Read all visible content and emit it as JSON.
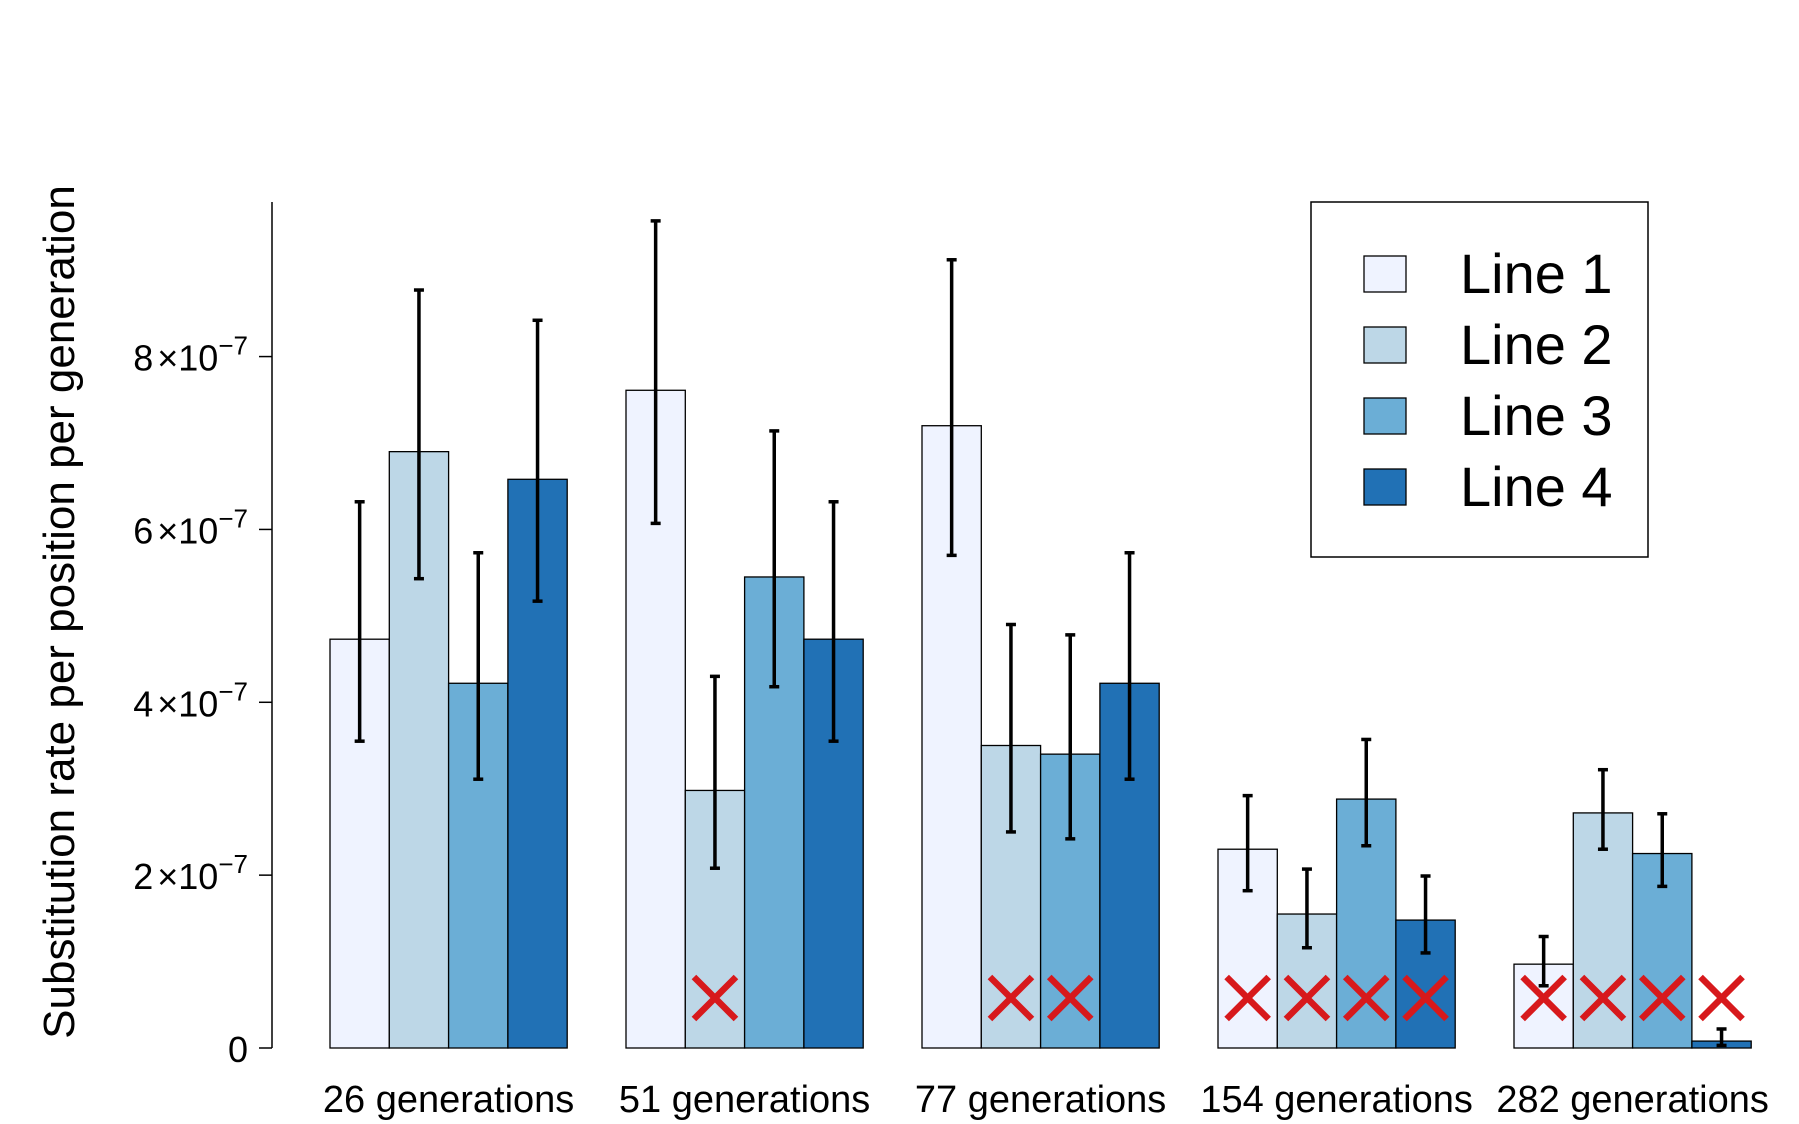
{
  "chart_data": {
    "type": "bar",
    "ylabel": "Substitution rate per position per generation",
    "xlabel": "",
    "ylim": [
      0,
      9.8e-07
    ],
    "yticks": [
      {
        "value": 0,
        "coef": "0",
        "sup": ""
      },
      {
        "value": 2e-07,
        "coef": "2",
        "sup": "−7"
      },
      {
        "value": 4e-07,
        "coef": "4",
        "sup": "−7"
      },
      {
        "value": 6e-07,
        "coef": "6",
        "sup": "−7"
      },
      {
        "value": 8e-07,
        "coef": "8",
        "sup": "−7"
      }
    ],
    "tick_times": "×10",
    "categories": [
      "26 generations",
      "51 generations",
      "77 generations",
      "154 generations",
      "282 generations"
    ],
    "series": [
      {
        "name": "Line 1",
        "color": "#eff3ff",
        "values": [
          4.73e-07,
          7.61e-07,
          7.2e-07,
          2.3e-07,
          9.7e-08
        ],
        "err_low": [
          3.55e-07,
          6.07e-07,
          5.7e-07,
          1.82e-07,
          7.2e-08
        ],
        "err_high": [
          6.32e-07,
          9.57e-07,
          9.12e-07,
          2.92e-07,
          1.29e-07
        ],
        "excluded": [
          false,
          false,
          false,
          true,
          true
        ]
      },
      {
        "name": "Line 2",
        "color": "#bdd7e7",
        "values": [
          6.9e-07,
          2.98e-07,
          3.5e-07,
          1.55e-07,
          2.72e-07
        ],
        "err_low": [
          5.43e-07,
          2.08e-07,
          2.5e-07,
          1.16e-07,
          2.3e-07
        ],
        "err_high": [
          8.77e-07,
          4.3e-07,
          4.9e-07,
          2.07e-07,
          3.22e-07
        ],
        "excluded": [
          false,
          true,
          true,
          true,
          true
        ]
      },
      {
        "name": "Line 3",
        "color": "#6baed6",
        "values": [
          4.22e-07,
          5.45e-07,
          3.4e-07,
          2.88e-07,
          2.25e-07
        ],
        "err_low": [
          3.11e-07,
          4.18e-07,
          2.42e-07,
          2.34e-07,
          1.87e-07
        ],
        "err_high": [
          5.73e-07,
          7.14e-07,
          4.78e-07,
          3.57e-07,
          2.71e-07
        ],
        "excluded": [
          false,
          false,
          true,
          true,
          true
        ]
      },
      {
        "name": "Line 4",
        "color": "#2171b5",
        "values": [
          6.58e-07,
          4.73e-07,
          4.22e-07,
          1.48e-07,
          8e-09
        ],
        "err_low": [
          5.17e-07,
          3.55e-07,
          3.11e-07,
          1.1e-07,
          3e-09
        ],
        "err_high": [
          8.42e-07,
          6.32e-07,
          5.73e-07,
          1.99e-07,
          2.2e-08
        ],
        "excluded": [
          false,
          false,
          false,
          true,
          true
        ]
      }
    ],
    "excluded_marker": "×",
    "excluded_color": "#d7191c",
    "legend": {
      "position": "top-right"
    },
    "grid": false
  }
}
